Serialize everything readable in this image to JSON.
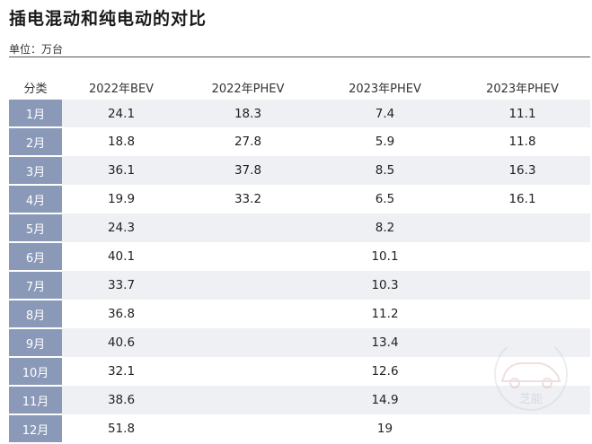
{
  "title": "插电混动和纯电动的对比",
  "unit": "单位：万台",
  "table": {
    "headers": [
      "分类",
      "2022年BEV",
      "2022年PHEV",
      "2023年PHEV",
      "2023年PHEV"
    ],
    "rows": [
      [
        "1月",
        "24.1",
        "18.3",
        "7.4",
        "11.1"
      ],
      [
        "2月",
        "18.8",
        "27.8",
        "5.9",
        "11.8"
      ],
      [
        "3月",
        "36.1",
        "37.8",
        "8.5",
        "16.3"
      ],
      [
        "4月",
        "19.9",
        "33.2",
        "6.5",
        "16.1"
      ],
      [
        "5月",
        "24.3",
        "",
        "8.2",
        ""
      ],
      [
        "6月",
        "40.1",
        "",
        "10.1",
        ""
      ],
      [
        "7月",
        "33.7",
        "",
        "10.3",
        ""
      ],
      [
        "8月",
        "36.8",
        "",
        "11.2",
        ""
      ],
      [
        "9月",
        "40.6",
        "",
        "13.4",
        ""
      ],
      [
        "10月",
        "32.1",
        "",
        "12.6",
        ""
      ],
      [
        "11月",
        "38.6",
        "",
        "14.9",
        ""
      ],
      [
        "12月",
        "51.8",
        "",
        "19",
        ""
      ]
    ]
  },
  "watermark": {
    "text": "芝能",
    "icon": "car-outline-icon"
  }
}
